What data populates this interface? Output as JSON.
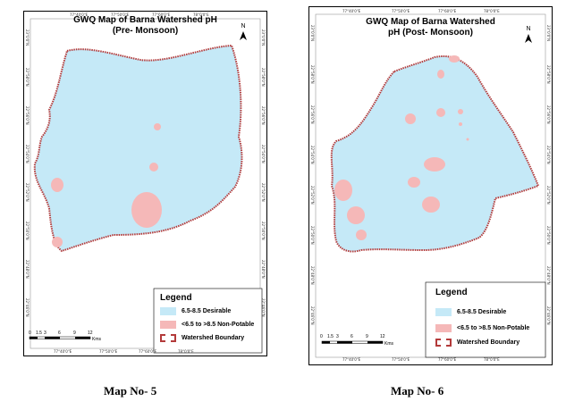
{
  "colors": {
    "desirable": "#c5e9f7",
    "non_potable": "#f5b8b8",
    "boundary": "#b33a3a"
  },
  "maps": [
    {
      "title_line1": "GWQ Map of Barna Watershed pH",
      "title_line2": "(Pre- Monsoon)",
      "north_label": "N",
      "legend": {
        "title": "Legend",
        "items": [
          {
            "label": "6.5-8.5 Desirable",
            "color": "#c5e9f7"
          },
          {
            "label": "<6.5 to >8.5 Non-Potable",
            "color": "#f5b8b8"
          },
          {
            "label": "Watershed Boundary",
            "color": "#ffffff"
          }
        ]
      },
      "scale": {
        "ticks": [
          "0",
          "1.5",
          "3",
          "6",
          "9",
          "12"
        ],
        "unit": "Kms"
      },
      "top_ticks": [
        "77°40'0\"E",
        "77°50'0\"E",
        "77°60'0\"E",
        "78°0'0\"E"
      ],
      "bottom_ticks": [
        "77°40'0\"E",
        "77°50'0\"E",
        "77°60'0\"E",
        "78°0'0\"E"
      ],
      "left_ticks": [
        "23°0'0\"N",
        "22°58'0\"N",
        "22°56'0\"N",
        "22°54'0\"N",
        "22°52'0\"N",
        "22°50'0\"N",
        "22°48'0\"N",
        "22°46'0\"N"
      ],
      "right_ticks": [
        "23°0'0\"N",
        "22°58'0\"N",
        "22°56'0\"N",
        "22°54'0\"N",
        "22°52'0\"N",
        "22°50'0\"N",
        "22°48'0\"N",
        "22°46'0\"N"
      ],
      "caption": "Map No- 5"
    },
    {
      "title_line1": "GWQ Map of Barna Watershed",
      "title_line2": "pH   (Post- Monsoon)",
      "north_label": "N",
      "legend": {
        "title": "Legend",
        "items": [
          {
            "label": "6.5-8.5 Desirable",
            "color": "#c5e9f7"
          },
          {
            "label": "<6.5 to >8.5 Non-Potable",
            "color": "#f5b8b8"
          },
          {
            "label": "Watershed Boundary",
            "color": "#ffffff"
          }
        ]
      },
      "scale": {
        "ticks": [
          "0",
          "1.5",
          "3",
          "6",
          "9",
          "12"
        ],
        "unit": "Kms"
      },
      "top_ticks": [
        "77°40'0\"E",
        "77°50'0\"E",
        "77°60'0\"E",
        "78°0'0\"E"
      ],
      "bottom_ticks": [
        "77°40'0\"E",
        "77°50'0\"E",
        "77°60'0\"E",
        "78°0'0\"E"
      ],
      "left_ticks": [
        "23°0'0\"N",
        "22°58'0\"N",
        "22°56'0\"N",
        "22°54'0\"N",
        "22°52'0\"N",
        "22°50'0\"N",
        "22°48'0\"N",
        "22°46'0\"N"
      ],
      "right_ticks": [
        "23°0'0\"N",
        "22°58'0\"N",
        "22°56'0\"N",
        "22°54'0\"N",
        "22°52'0\"N",
        "22°50'0\"N",
        "22°48'0\"N",
        "22°46'0\"N"
      ],
      "caption": "Map No- 6"
    }
  ]
}
